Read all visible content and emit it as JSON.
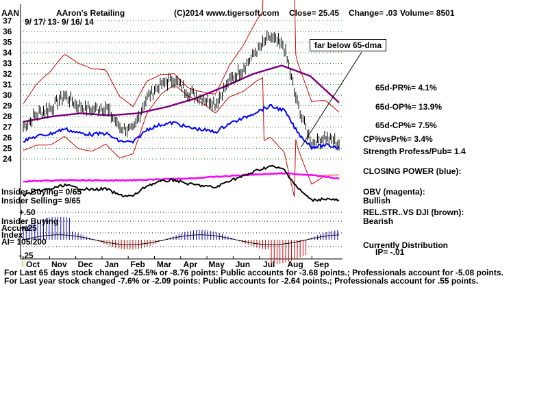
{
  "header": {
    "ticker": "AAN",
    "company": "AAron's Retailing",
    "source": "(C)2014 www.tigersoft.com",
    "close": "Close=  25.45",
    "change": "Change= .03",
    "volume": "Volume= 8501",
    "date_range": "9/ 17/ 13- 9/ 16/ 14"
  },
  "annotation": "far below 65-dma",
  "right_panel": {
    "pr": "65d-PR%= 4.1%",
    "op": "65d-OP%= 13.9%",
    "cp": "65d-CP%= 7.5%",
    "cpvspr": "CP%vsPr%=  3.4%",
    "strength": "Strength Profess/Pub= 1.4",
    "closing_power": "CLOSING POWER (blue):",
    "obv": "OBV (magenta):",
    "obv_state": "Bullish",
    "relstr": "REL.STR..VS DJI (brown):",
    "relstr_state": "Bearish",
    "distribution": "Currently Distribution",
    "ip": "IP= -.01"
  },
  "left_labels": {
    "insider_buying": "Insider Buying= 0/65",
    "insider_selling": "Insider Selling= 9/65",
    "plus50": "+.50",
    "insider_buying2": "Insider Buying",
    "accum": "Accum",
    "plus25": "+.25",
    "index": "Index",
    "ai": "AI= 105/200",
    "minus25": "-.25"
  },
  "footer": {
    "line1": "For Last 65 days stock changed -25.5% or -8.76 points:  Public accounts for -3.68 points.;  Professionals account for -5.08 points.",
    "line2": "For Last year stock changed -7.6% or -2.09 points:  Public accounts for -2.64 points.;  Professionals account for  .55 points."
  },
  "colors": {
    "price_bars": "#000000",
    "ma": "#800080",
    "bands": "#cc0000",
    "closing_power": "#0000ff",
    "obv": "#ff00ff",
    "rel_str": "#000000",
    "accum_pos": "#0000cc",
    "accum_neg": "#cc0000",
    "grid": "#008000"
  },
  "chart_data": {
    "type": "line",
    "title": "AAron's Retailing",
    "x_tick_labels": [
      "Oct",
      "Nov",
      "Dec",
      "Jan",
      "Feb",
      "Mar",
      "Apr",
      "May",
      "Jun",
      "Jul",
      "Aug",
      "Sep"
    ],
    "y_tick_labels": [
      24,
      25,
      26,
      27,
      28,
      29,
      30,
      31,
      32,
      33,
      34,
      35,
      36,
      37
    ],
    "ylim": [
      24,
      37
    ],
    "grid": true,
    "series": [
      {
        "name": "Close",
        "x": [
          "Sep",
          "Oct",
          "Oct",
          "Nov",
          "Nov",
          "Dec",
          "Dec",
          "Jan",
          "Jan",
          "Feb",
          "Feb",
          "Mar",
          "Mar",
          "Apr",
          "Apr",
          "May",
          "May",
          "Jun",
          "Jun",
          "Jul",
          "Jul",
          "Aug",
          "Aug",
          "Sep"
        ],
        "values": [
          27.0,
          28.2,
          28.8,
          30.0,
          29.0,
          28.6,
          28.9,
          27.0,
          26.7,
          29.8,
          31.0,
          31.5,
          30.3,
          29.8,
          29.2,
          31.3,
          32.5,
          34.2,
          35.5,
          34.5,
          29.0,
          25.5,
          26.0,
          25.45
        ]
      },
      {
        "name": "65-dma",
        "x": [
          "Oct",
          "Nov",
          "Dec",
          "Jan",
          "Feb",
          "Mar",
          "Apr",
          "May",
          "Jun",
          "Jul",
          "Aug",
          "Sep"
        ],
        "values": [
          27.5,
          28.0,
          28.3,
          28.1,
          28.3,
          28.9,
          29.7,
          30.8,
          32.0,
          32.8,
          31.8,
          29.3
        ]
      }
    ]
  }
}
